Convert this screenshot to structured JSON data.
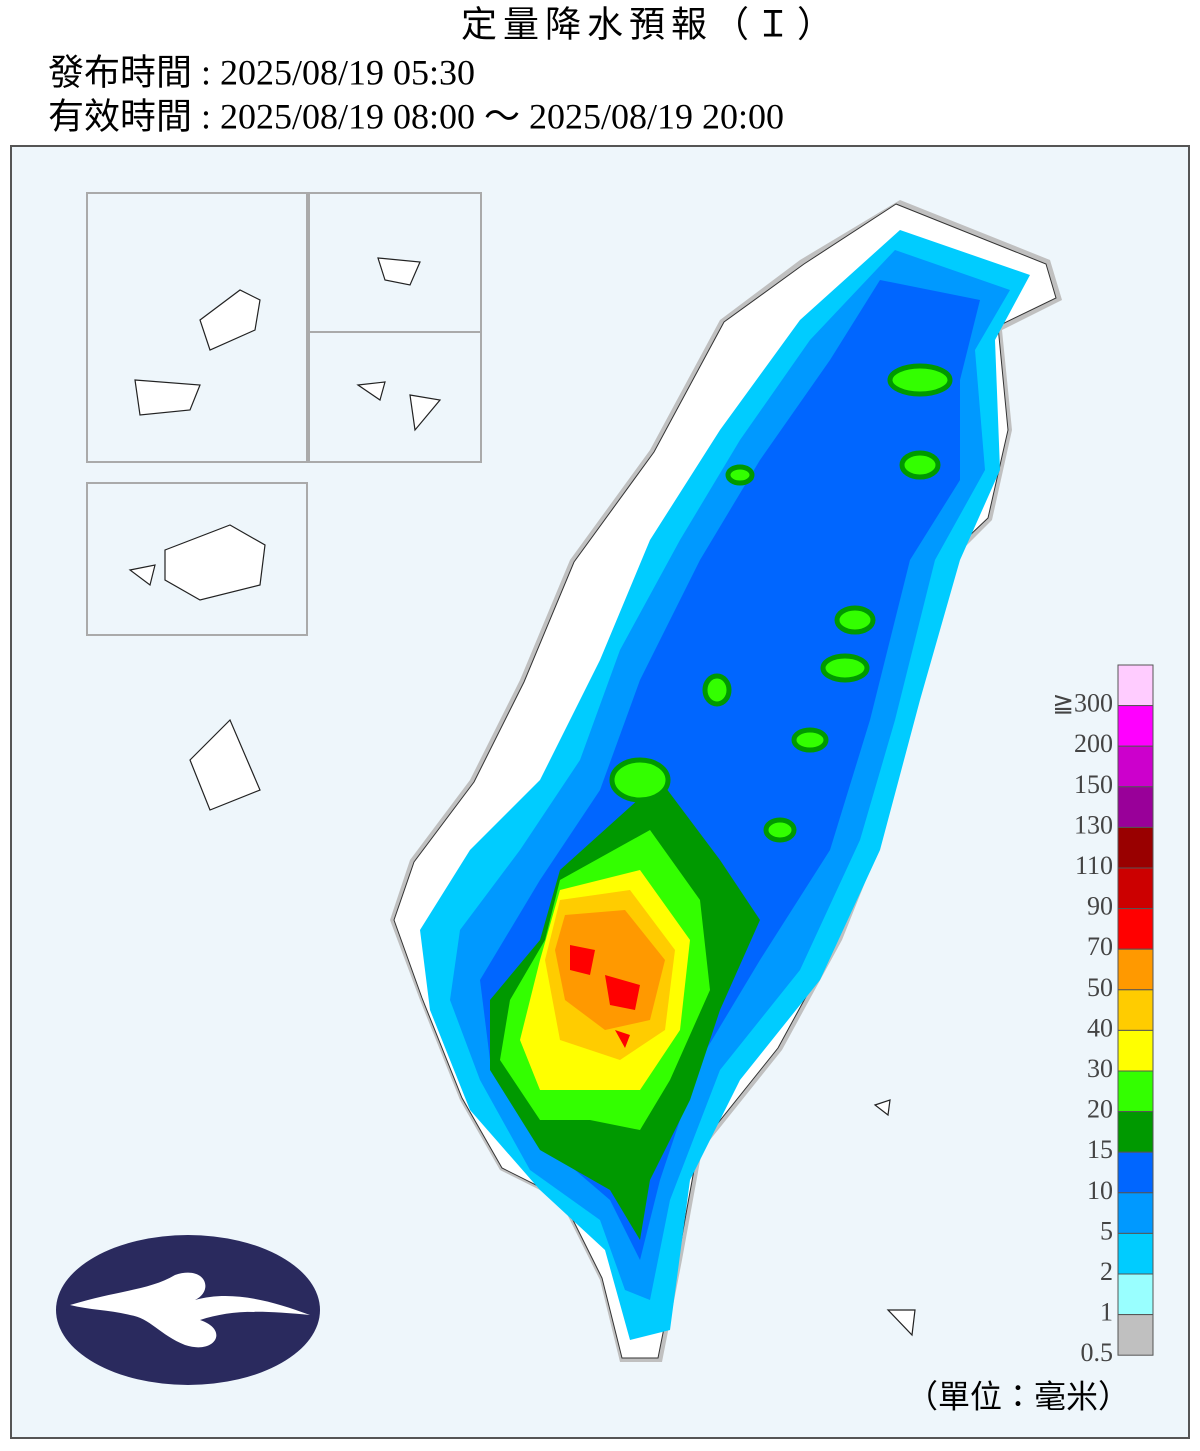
{
  "header": {
    "title": "定量降水預報（Ｉ）",
    "issued": "發布時間 : 2025/08/19 05:30",
    "valid": "有效時間 : 2025/08/19 08:00 ～ 2025/08/19 20:00"
  },
  "legend": {
    "unit": "（單位：毫米）",
    "items": [
      {
        "label": "≧300",
        "color": "#ffccff"
      },
      {
        "label": "200",
        "color": "#ff00ff"
      },
      {
        "label": "150",
        "color": "#cc00cc"
      },
      {
        "label": "130",
        "color": "#990099"
      },
      {
        "label": "110",
        "color": "#990000"
      },
      {
        "label": "90",
        "color": "#cc0000"
      },
      {
        "label": "70",
        "color": "#ff0000"
      },
      {
        "label": "50",
        "color": "#ff9900"
      },
      {
        "label": "40",
        "color": "#ffcc00"
      },
      {
        "label": "30",
        "color": "#ffff00"
      },
      {
        "label": "20",
        "color": "#33ff00"
      },
      {
        "label": "15",
        "color": "#009900"
      },
      {
        "label": "10",
        "color": "#0066ff"
      },
      {
        "label": "5",
        "color": "#0099ff"
      },
      {
        "label": "2",
        "color": "#00ccff"
      },
      {
        "label": "1",
        "color": "#99ffff"
      },
      {
        "label": "0.5",
        "color": "#c0c0c0"
      }
    ]
  }
}
